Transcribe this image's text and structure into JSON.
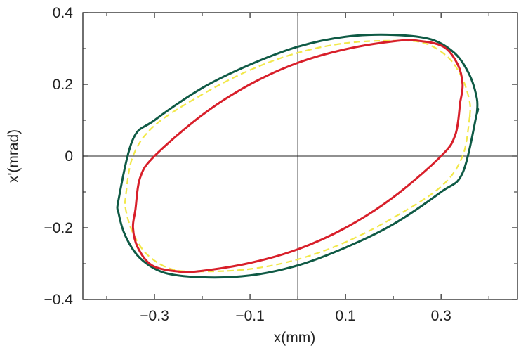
{
  "chart_data": {
    "type": "line",
    "title": "",
    "xlabel": "x(mm)",
    "ylabel": "x'(mrad)",
    "xlim": [
      -0.45,
      0.46
    ],
    "ylim": [
      -0.4,
      0.4
    ],
    "x_ticks": [
      -0.3,
      -0.1,
      0.1,
      0.3
    ],
    "x_tick_labels": [
      "−0.3",
      "−0.1",
      "0.1",
      "0.3"
    ],
    "y_ticks": [
      -0.4,
      -0.2,
      0,
      0.2,
      0.4
    ],
    "y_tick_labels": [
      "−0.4",
      "−0.2",
      "0",
      "0.2",
      "0.4"
    ],
    "zero_lines": true,
    "grid": false,
    "legend": "none",
    "series": [
      {
        "color": "#0f5a45",
        "style": "solid",
        "description": "outer ellipse",
        "x": [
          0.375,
          0.375,
          0.36,
          0.33,
          0.28,
          0.2,
          0.1,
          0.0,
          -0.1,
          -0.2,
          -0.3,
          -0.345,
          -0.375,
          -0.375,
          -0.36,
          -0.33,
          -0.28,
          -0.2,
          -0.1,
          0.0,
          0.1,
          0.2,
          0.3,
          0.345,
          0.375
        ],
        "y": [
          0.12,
          0.16,
          0.225,
          0.285,
          0.325,
          0.338,
          0.333,
          0.305,
          0.255,
          0.19,
          0.1,
          0.047,
          -0.12,
          -0.16,
          -0.225,
          -0.285,
          -0.325,
          -0.338,
          -0.333,
          -0.305,
          -0.255,
          -0.19,
          -0.1,
          -0.047,
          0.12
        ]
      },
      {
        "color": "#f2e84a",
        "style": "dashed",
        "description": "middle ellipse",
        "x": [
          0.36,
          0.36,
          0.345,
          0.315,
          0.265,
          0.2,
          0.1,
          0.0,
          -0.1,
          -0.2,
          -0.3,
          -0.345,
          -0.36,
          -0.36,
          -0.345,
          -0.315,
          -0.265,
          -0.2,
          -0.1,
          0.0,
          0.1,
          0.2,
          0.3,
          0.345,
          0.36
        ],
        "y": [
          0.11,
          0.15,
          0.215,
          0.275,
          0.315,
          0.322,
          0.315,
          0.288,
          0.24,
          0.172,
          0.085,
          0.0,
          -0.11,
          -0.15,
          -0.215,
          -0.275,
          -0.315,
          -0.322,
          -0.315,
          -0.288,
          -0.24,
          -0.172,
          -0.085,
          0.0,
          0.11
        ]
      },
      {
        "color": "#d81f2a",
        "style": "solid",
        "description": "inner ellipse",
        "x": [
          0.34,
          0.345,
          0.335,
          0.305,
          0.25,
          0.2,
          0.1,
          0.0,
          -0.1,
          -0.2,
          -0.3,
          -0.33,
          -0.34,
          -0.345,
          -0.335,
          -0.305,
          -0.25,
          -0.2,
          -0.1,
          0.0,
          0.1,
          0.2,
          0.3,
          0.33,
          0.34
        ],
        "y": [
          0.15,
          0.2,
          0.255,
          0.305,
          0.322,
          0.32,
          0.298,
          0.26,
          0.2,
          0.115,
          0.0,
          -0.06,
          -0.15,
          -0.2,
          -0.255,
          -0.305,
          -0.322,
          -0.32,
          -0.298,
          -0.26,
          -0.2,
          -0.115,
          0.0,
          0.06,
          0.15
        ]
      }
    ]
  }
}
